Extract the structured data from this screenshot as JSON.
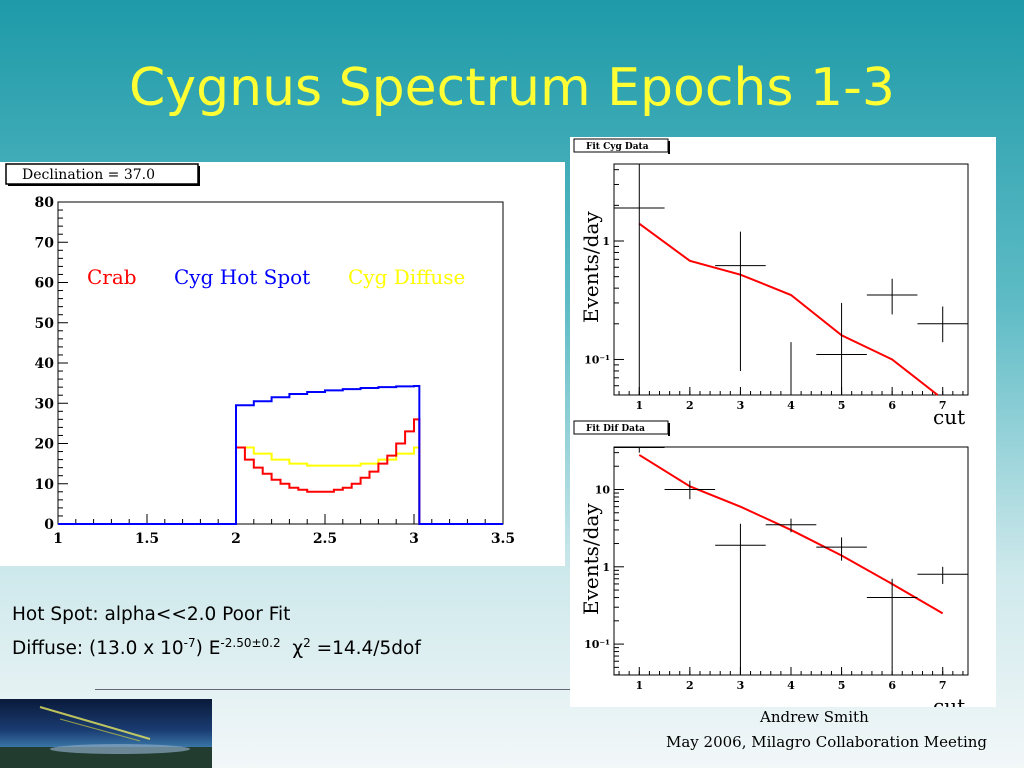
{
  "slide": {
    "title": "Cygnus Spectrum Epochs 1-3",
    "note_line1": "Hot Spot: alpha<<2.0 Poor Fit",
    "note_line2": {
      "prefix": "Diffuse: (13.0 x 10",
      "exp1": "-7",
      "mid": ") E",
      "exp2": "-2.50±0.2",
      "chi": "χ",
      "chi_exp": "2",
      "suffix": " =14.4/5dof"
    },
    "footer_author": "Andrew Smith",
    "footer_event": "May 2006, Milagro Collaboration Meeting"
  },
  "chart_data": [
    {
      "type": "line",
      "stat_box": "Declination =  37.0",
      "xlim": [
        1,
        3.5
      ],
      "ylim": [
        0,
        80
      ],
      "x_ticks": [
        "1",
        "1.5",
        "2",
        "2.5",
        "3",
        "3.5"
      ],
      "y_ticks": [
        "0",
        "10",
        "20",
        "30",
        "40",
        "50",
        "60",
        "70",
        "80"
      ],
      "series": [
        {
          "name": "Crab",
          "color": "#ff0000",
          "x": [
            1.0,
            1.96,
            2.0,
            2.05,
            2.1,
            2.15,
            2.2,
            2.25,
            2.3,
            2.35,
            2.4,
            2.45,
            2.5,
            2.55,
            2.6,
            2.65,
            2.7,
            2.75,
            2.8,
            2.85,
            2.9,
            2.95,
            3.0,
            3.03,
            3.5
          ],
          "y": [
            0,
            0,
            19,
            16,
            14,
            12.5,
            11,
            10,
            9,
            8.5,
            8,
            8,
            8,
            8.5,
            9,
            10,
            11.5,
            13,
            15,
            17,
            20,
            23,
            26,
            0,
            0
          ]
        },
        {
          "name": "Cyg Hot Spot",
          "color": "#0000ff",
          "x": [
            1.0,
            1.96,
            2.0,
            2.1,
            2.2,
            2.3,
            2.4,
            2.5,
            2.6,
            2.7,
            2.8,
            2.9,
            3.0,
            3.03,
            3.5
          ],
          "y": [
            0,
            0,
            29.5,
            30.5,
            31.5,
            32.3,
            32.8,
            33.2,
            33.5,
            33.8,
            34,
            34.2,
            34.3,
            0,
            0
          ]
        },
        {
          "name": "Cyg Diffuse",
          "color": "#ffff00",
          "x": [
            1.0,
            1.96,
            2.0,
            2.1,
            2.2,
            2.3,
            2.4,
            2.5,
            2.6,
            2.7,
            2.8,
            2.9,
            3.0,
            3.03,
            3.5
          ],
          "y": [
            0,
            0,
            19,
            17.5,
            16,
            15,
            14.5,
            14.5,
            14.5,
            15,
            16,
            17.5,
            19,
            0,
            0
          ]
        }
      ]
    },
    {
      "type": "scatter",
      "title": "Fit Cyg Data",
      "ylabel": "Events/day",
      "xlabel": "cut",
      "y_scale": "log",
      "xlim": [
        0.5,
        7.5
      ],
      "x_ticks": [
        "1",
        "2",
        "3",
        "4",
        "5",
        "6",
        "7"
      ],
      "y_ticks": [
        "10⁻¹",
        "1"
      ],
      "points": {
        "x": [
          1,
          2,
          3,
          4,
          5,
          6,
          7
        ],
        "y": [
          1.9,
          null,
          0.62,
          null,
          0.11,
          0.35,
          0.2
        ],
        "y_err_low": [
          0.0,
          null,
          0.08,
          0.0,
          0.0,
          0.24,
          0.14
        ],
        "y_err_high": [
          4.5,
          null,
          1.2,
          0.14,
          0.3,
          0.48,
          0.28
        ]
      },
      "fit": {
        "color": "#ff0000",
        "x": [
          1,
          2,
          3,
          4,
          5,
          6,
          6.9
        ],
        "y": [
          1.4,
          0.68,
          0.52,
          0.35,
          0.16,
          0.1,
          0.045
        ]
      }
    },
    {
      "type": "scatter",
      "title": "Fit Dif Data",
      "ylabel": "Events/day",
      "xlabel": "cut",
      "y_scale": "log",
      "xlim": [
        0.5,
        7.5
      ],
      "x_ticks": [
        "1",
        "2",
        "3",
        "4",
        "5",
        "6",
        "7"
      ],
      "y_ticks": [
        "10⁻¹",
        "1",
        "10"
      ],
      "points": {
        "x": [
          1,
          2,
          3,
          4,
          5,
          6,
          7
        ],
        "y": [
          35,
          10,
          1.9,
          3.5,
          1.8,
          0.4,
          0.8
        ],
        "y_err_low": [
          30,
          7.5,
          0.0,
          2.8,
          1.2,
          0.05,
          0.6
        ],
        "y_err_high": [
          40,
          13,
          3.6,
          4.2,
          2.4,
          0.7,
          1.0
        ]
      },
      "fit": {
        "color": "#ff0000",
        "x": [
          1,
          2,
          3,
          4,
          5,
          6,
          7
        ],
        "y": [
          28,
          11,
          6,
          3,
          1.4,
          0.6,
          0.25
        ]
      }
    }
  ]
}
